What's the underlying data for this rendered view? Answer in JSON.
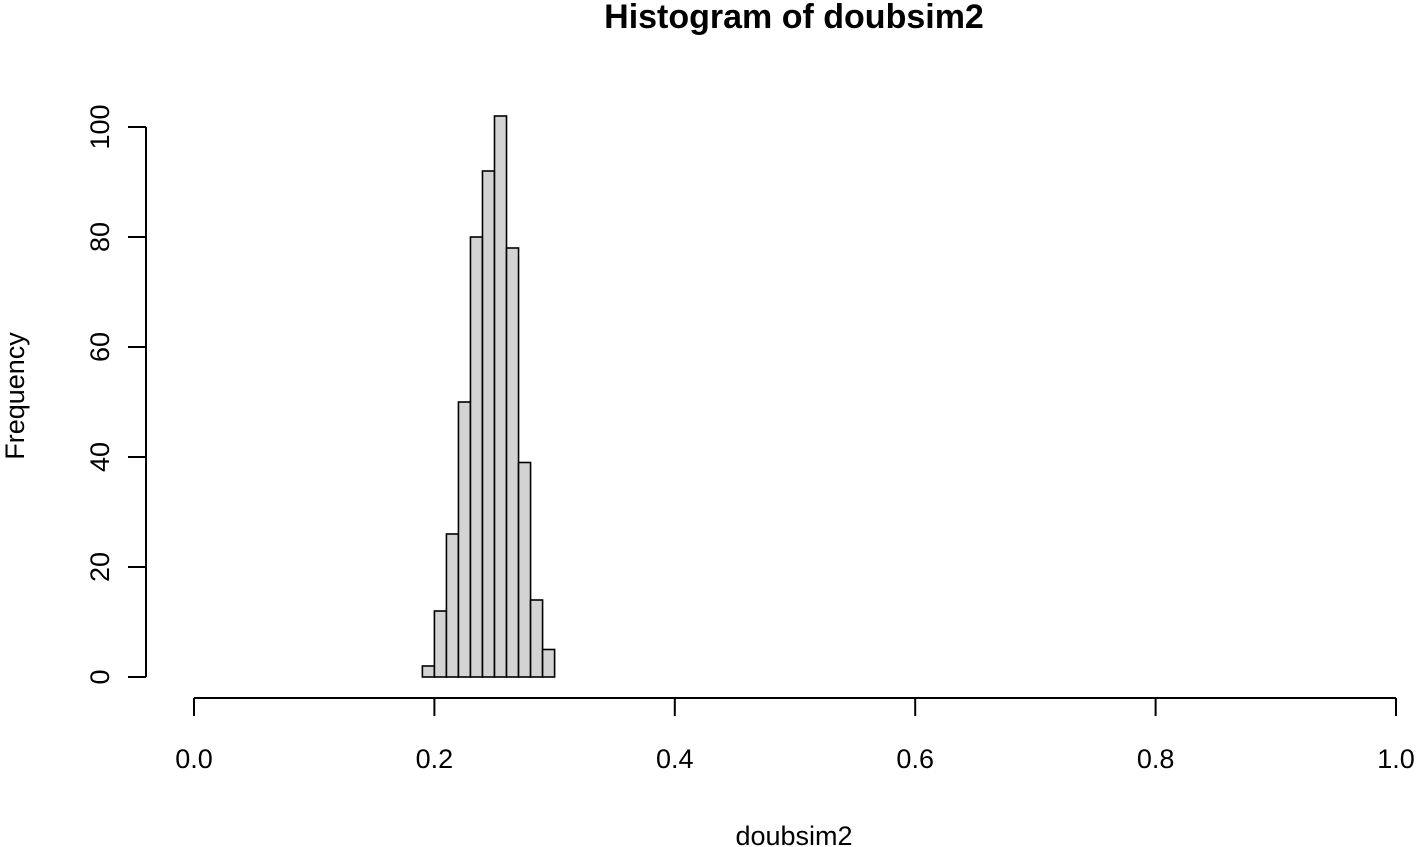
{
  "chart_data": {
    "type": "bar",
    "title": "Histogram of doubsim2",
    "xlabel": "doubsim2",
    "ylabel": "Frequency",
    "xlim": [
      0.0,
      1.0
    ],
    "ylim": [
      0,
      100
    ],
    "x_ticks": [
      "0.0",
      "0.2",
      "0.4",
      "0.6",
      "0.8",
      "1.0"
    ],
    "y_ticks": [
      "0",
      "20",
      "40",
      "60",
      "80",
      "100"
    ],
    "bin_width": 0.01,
    "bins": [
      {
        "x0": 0.19,
        "x1": 0.2,
        "count": 2
      },
      {
        "x0": 0.2,
        "x1": 0.21,
        "count": 12
      },
      {
        "x0": 0.21,
        "x1": 0.22,
        "count": 26
      },
      {
        "x0": 0.22,
        "x1": 0.23,
        "count": 50
      },
      {
        "x0": 0.23,
        "x1": 0.24,
        "count": 80
      },
      {
        "x0": 0.24,
        "x1": 0.25,
        "count": 92
      },
      {
        "x0": 0.25,
        "x1": 0.26,
        "count": 102
      },
      {
        "x0": 0.26,
        "x1": 0.27,
        "count": 78
      },
      {
        "x0": 0.27,
        "x1": 0.28,
        "count": 39
      },
      {
        "x0": 0.28,
        "x1": 0.29,
        "count": 14
      },
      {
        "x0": 0.29,
        "x1": 0.3,
        "count": 5
      }
    ],
    "bar_fill": "#d3d3d3",
    "bar_stroke": "#000000",
    "grid": false,
    "legend": "none"
  }
}
